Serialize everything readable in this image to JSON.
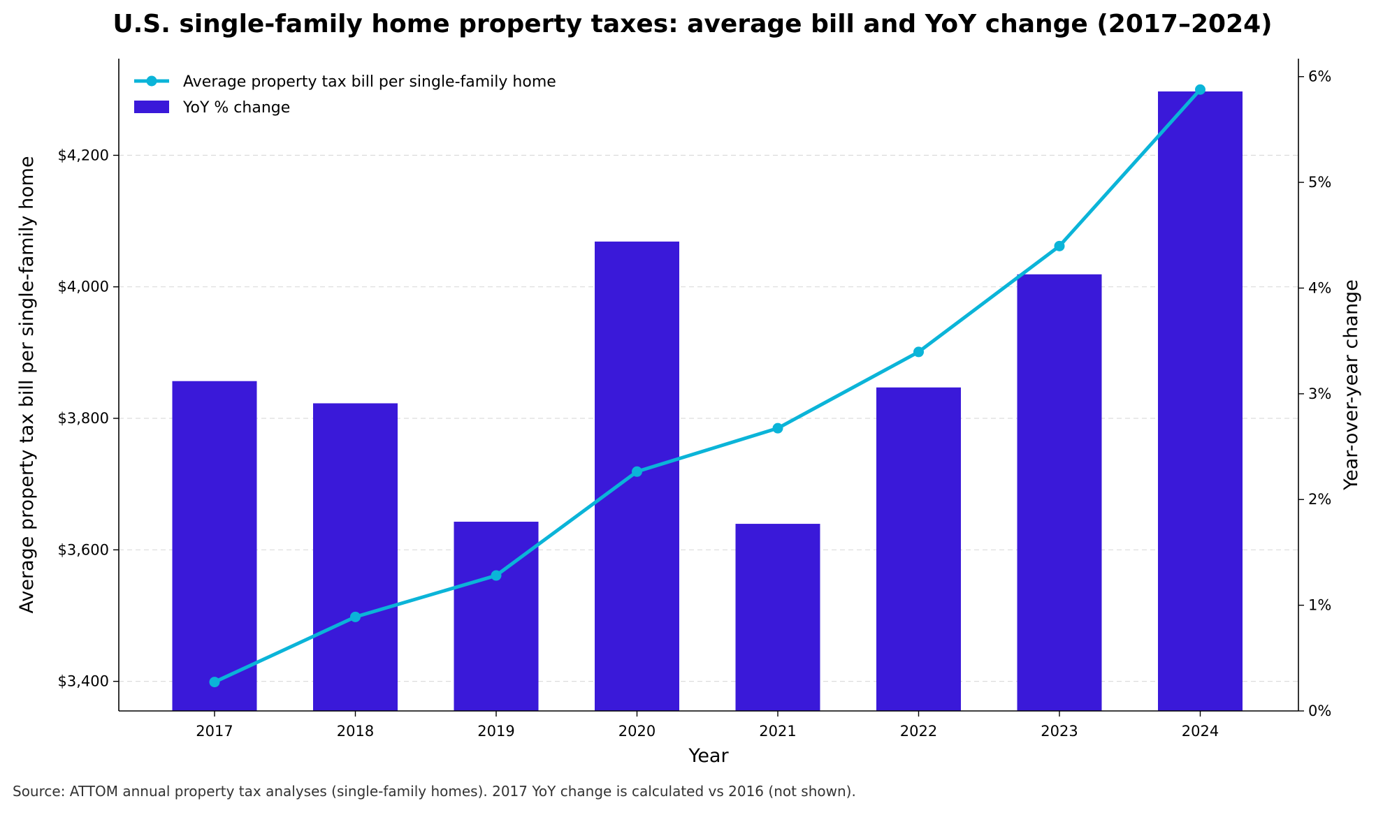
{
  "chart_data": {
    "type": "bar+line",
    "title": "U.S. single-family home property taxes: average bill and YoY change (2017–2024)",
    "xlabel": "Year",
    "ylabel_left": "Average property tax bill per single-family home",
    "ylabel_right": "Year-over-year change",
    "categories": [
      "2017",
      "2018",
      "2019",
      "2020",
      "2021",
      "2022",
      "2023",
      "2024"
    ],
    "series": [
      {
        "name": "Average property tax bill per single-family home",
        "type": "line",
        "axis": "left",
        "color": "#0BB4D8",
        "values": [
          3399,
          3498,
          3561,
          3719,
          3785,
          3901,
          4062,
          4300
        ]
      },
      {
        "name": "YoY % change",
        "type": "bar",
        "axis": "right",
        "color": "#3A19D9",
        "values": [
          3.12,
          2.91,
          1.79,
          4.44,
          1.77,
          3.06,
          4.13,
          5.86
        ]
      }
    ],
    "ylim_left": [
      3355,
      4347
    ],
    "ylim_right": [
      0,
      6.17
    ],
    "yticks_left": [
      3400,
      3600,
      3800,
      4000,
      4200
    ],
    "yticks_left_labels": [
      "$3,400",
      "$3,600",
      "$3,800",
      "$4,000",
      "$4,200"
    ],
    "yticks_right": [
      0,
      1,
      2,
      3,
      4,
      5,
      6
    ],
    "yticks_right_labels": [
      "0%",
      "1%",
      "2%",
      "3%",
      "4%",
      "5%",
      "6%"
    ],
    "grid": "horizontal dashed (left axis)",
    "legend_position": "top-left",
    "source": "Source: ATTOM annual property tax analyses (single-family homes). 2017 YoY change is calculated vs 2016 (not shown)."
  }
}
